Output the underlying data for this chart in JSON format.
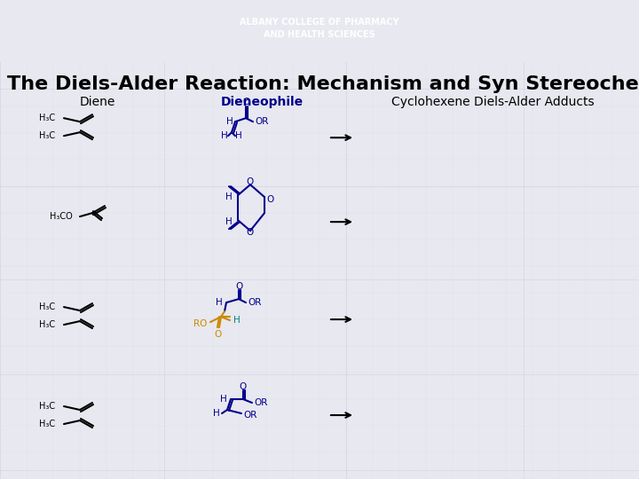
{
  "title": "The Diels-Alder Reaction: Mechanism and Syn Stereochemistry",
  "header_bg_color": "#8B1A1A",
  "header_text": "ALBANY COLLEGE OF PHARMACY\nAND HEALTH SCIENCES",
  "header_text_color": "#FFFFFF",
  "bg_color": "#E8E8F0",
  "col_headers": [
    "Diene",
    "Dieneophile",
    "Cyclohexene Diels-Alder Adducts"
  ],
  "col_header_colors": [
    "#000000",
    "#00008B",
    "#000000"
  ],
  "diene_color": "#000000",
  "dienophile_blue_color": "#00008B",
  "dienophile_orange_color": "#CC8800",
  "dienophile_green_color": "#008080",
  "arrow_color": "#000000",
  "grid_color": "#BBBBCC",
  "title_fontsize": 16,
  "col_header_fontsize": 10,
  "body_fontsize": 8
}
